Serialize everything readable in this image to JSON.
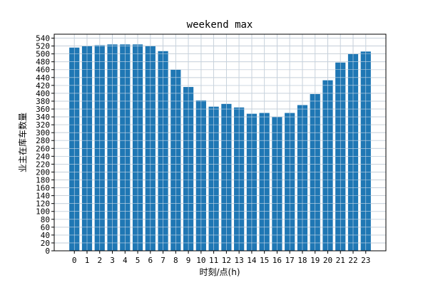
{
  "chart_data": {
    "type": "bar",
    "title": "weekend max",
    "xlabel": "时刻/点(h)",
    "ylabel": "业主在库车数量",
    "categories": [
      "0",
      "1",
      "2",
      "3",
      "4",
      "5",
      "6",
      "7",
      "8",
      "9",
      "10",
      "11",
      "12",
      "13",
      "14",
      "15",
      "16",
      "17",
      "18",
      "19",
      "20",
      "21",
      "22",
      "23"
    ],
    "values": [
      516,
      520,
      522,
      524,
      524,
      524,
      520,
      507,
      460,
      416,
      382,
      366,
      373,
      364,
      348,
      350,
      340,
      350,
      370,
      398,
      433,
      478,
      500,
      506
    ],
    "ylim": [
      0,
      550
    ],
    "yticks": [
      0,
      20,
      40,
      60,
      80,
      100,
      120,
      140,
      160,
      180,
      200,
      220,
      240,
      260,
      280,
      300,
      320,
      340,
      360,
      380,
      400,
      420,
      440,
      460,
      480,
      500,
      520,
      540
    ],
    "grid": true,
    "bar_color": "#1f77b4",
    "legend": "none"
  }
}
